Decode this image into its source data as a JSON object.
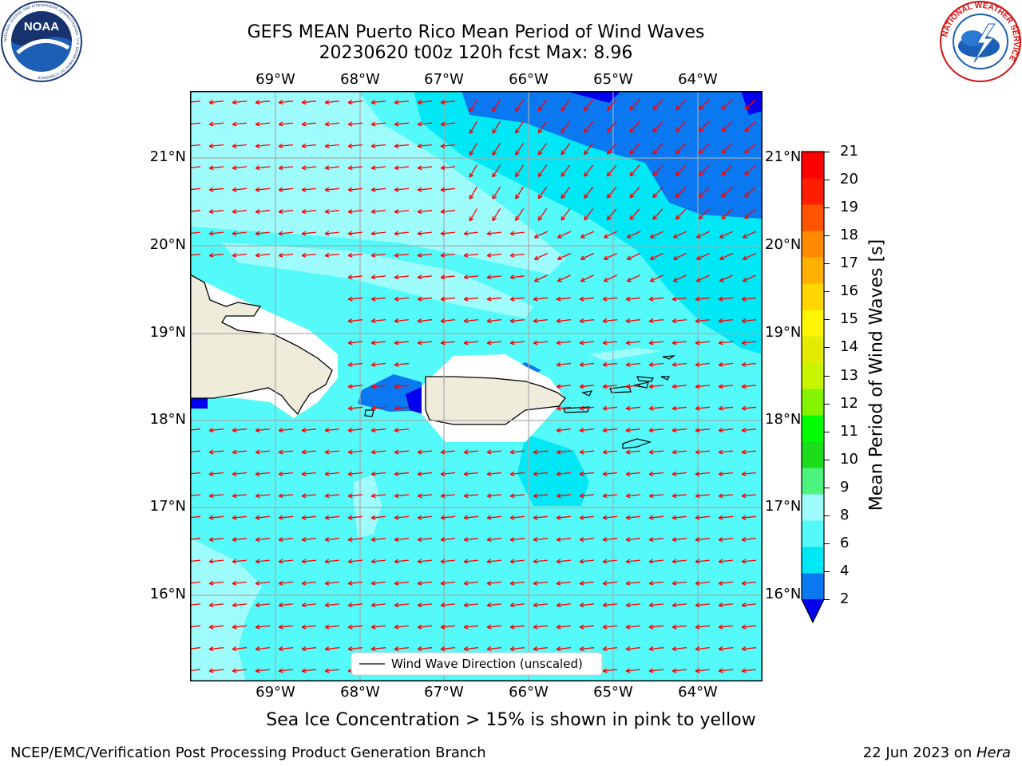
{
  "title": {
    "line1": "GEFS MEAN Puerto Rico Mean Period of Wind Waves",
    "line2": "20230620 t00z 120h fcst   Max: 8.96"
  },
  "logos": {
    "left_text": "NOAA",
    "left_ring": "NATIONAL OCEANIC AND ATMOSPHERIC ADMINISTRATION · U.S. DEPARTMENT OF COMMERCE",
    "right_ring": "NATIONAL WEATHER SERVICE"
  },
  "map": {
    "lon_labels": [
      "69°W",
      "68°W",
      "67°W",
      "66°W",
      "65°W",
      "64°W"
    ],
    "lat_labels": [
      "21°N",
      "20°N",
      "19°N",
      "18°N",
      "17°N",
      "16°N"
    ],
    "legend_text": "Wind Wave Direction (unscaled)",
    "arrow_color": "#ff0000",
    "land_color": "#efecdc"
  },
  "colorbar": {
    "label": "Mean Period of Wind Waves [s]",
    "ticks": [
      "2",
      "4",
      "6",
      "8",
      "9",
      "10",
      "11",
      "12",
      "13",
      "14",
      "15",
      "16",
      "17",
      "18",
      "19",
      "20",
      "21"
    ],
    "colors": [
      "#0000ee",
      "#0a78f0",
      "#00e8f6",
      "#53faf9",
      "#9ffcfc",
      "#4cf37c",
      "#1cdd1c",
      "#00ff00",
      "#84f400",
      "#c8f400",
      "#e4ea00",
      "#fff500",
      "#ffd600",
      "#ffb000",
      "#ff8a00",
      "#ff5500",
      "#ff1e00",
      "#ff0000"
    ]
  },
  "subtitle": "Sea Ice Concentration > 15% is shown in pink to yellow",
  "footer": {
    "left": "NCEP/EMC/Verification Post Processing Product Generation Branch",
    "date": "22 Jun 2023 on ",
    "machine": "Hera"
  }
}
